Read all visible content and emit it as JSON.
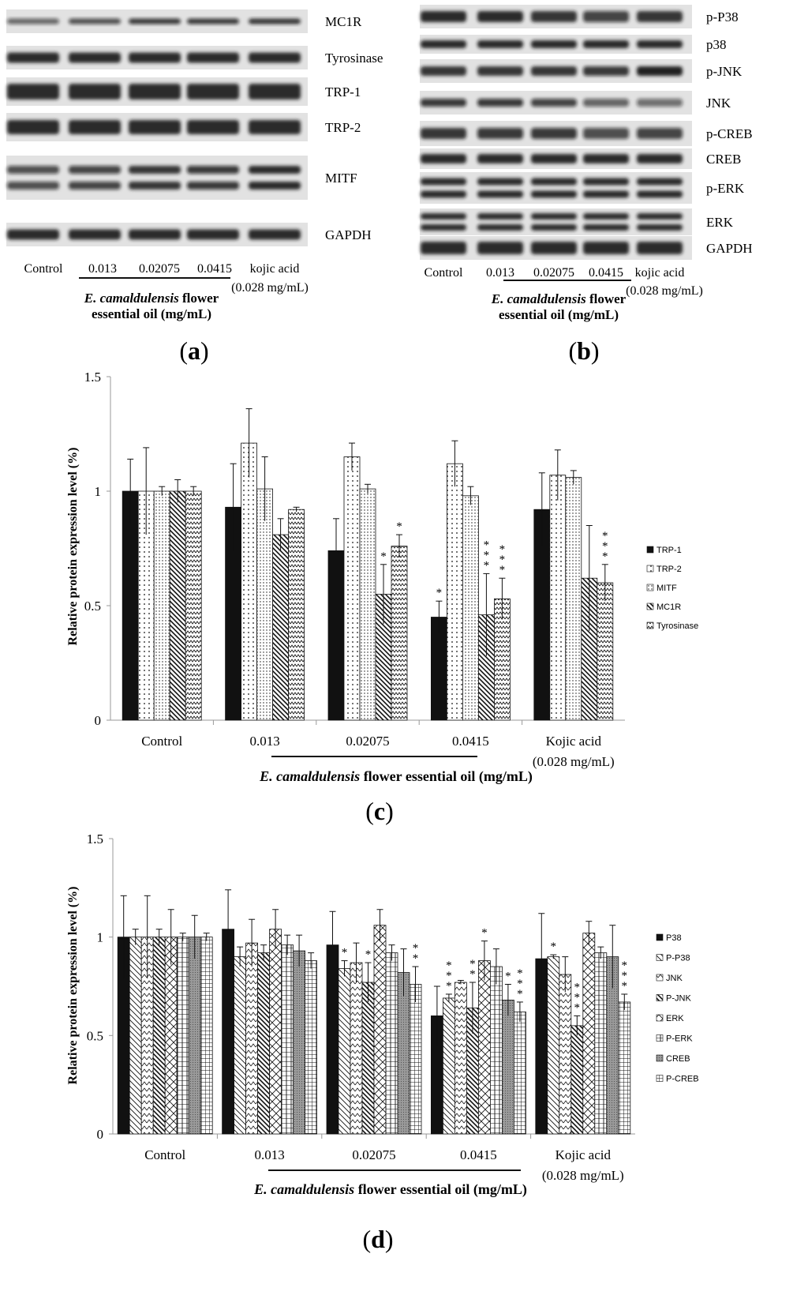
{
  "blot_a": {
    "bands": [
      "MC1R",
      "Tyrosinase",
      "TRP-1",
      "TRP-2",
      "MITF",
      "GAPDH"
    ],
    "x_labels": [
      "Control",
      "0.013",
      "0.02075",
      "0.0415",
      "kojic acid"
    ],
    "x_note": "(0.028 mg/mL)",
    "caption_species": "E. camaldulensis",
    "caption_rest1": " flower",
    "caption_line2": "essential oil (mg/mL)",
    "panel": "a"
  },
  "blot_b": {
    "bands": [
      "p-P38",
      "p38",
      "p-JNK",
      "JNK",
      "p-CREB",
      "CREB",
      "p-ERK",
      "ERK",
      "GAPDH"
    ],
    "x_labels": [
      "Control",
      "0.013",
      "0.02075",
      "0.0415",
      "kojic acid"
    ],
    "x_note": "(0.028 mg/mL)",
    "caption_species": "E. camaldulensis",
    "caption_rest1": " flower",
    "caption_line2": "essential oil (mg/mL)",
    "panel": "b"
  },
  "chart_data": [
    {
      "type": "bar",
      "panel": "c",
      "ylabel": "Relative protein expression level (%)",
      "ylim": [
        0,
        1.5
      ],
      "yticks": [
        "0",
        "0.5",
        "1",
        "1.5"
      ],
      "categories": [
        "Control",
        "0.013",
        "0.02075",
        "0.0415",
        "Kojic acid"
      ],
      "category_note": "(0.028 mg/mL)",
      "xtitle_species": "E. camaldulensis",
      "xtitle_rest": " flower essential oil (mg/mL)",
      "legend_position": "right",
      "series": [
        {
          "name": "TRP-1",
          "values": [
            1.0,
            0.93,
            0.74,
            0.45,
            0.92
          ],
          "errors": [
            0.14,
            0.19,
            0.14,
            0.07,
            0.16
          ],
          "stars": [
            "",
            "",
            "",
            "*",
            ""
          ]
        },
        {
          "name": "TRP-2",
          "values": [
            1.0,
            1.21,
            1.15,
            1.12,
            1.07
          ],
          "errors": [
            0.19,
            0.15,
            0.06,
            0.1,
            0.11
          ],
          "stars": [
            "",
            "",
            "",
            "",
            ""
          ]
        },
        {
          "name": "MITF",
          "values": [
            1.0,
            1.01,
            1.01,
            0.98,
            1.06
          ],
          "errors": [
            0.02,
            0.14,
            0.02,
            0.04,
            0.03
          ],
          "stars": [
            "",
            "",
            "",
            "",
            ""
          ]
        },
        {
          "name": "MC1R",
          "values": [
            1.0,
            0.81,
            0.55,
            0.46,
            0.62
          ],
          "errors": [
            0.05,
            0.07,
            0.13,
            0.18,
            0.23
          ],
          "stars": [
            "",
            "",
            "*",
            "***",
            ""
          ]
        },
        {
          "name": "Tyrosinase",
          "values": [
            1.0,
            0.92,
            0.76,
            0.53,
            0.6
          ],
          "errors": [
            0.02,
            0.01,
            0.05,
            0.09,
            0.08
          ],
          "stars": [
            "",
            "",
            "*",
            "***",
            "***"
          ]
        }
      ]
    },
    {
      "type": "bar",
      "panel": "d",
      "ylabel": "Relative protein expression level (%)",
      "ylim": [
        0,
        1.5
      ],
      "yticks": [
        "0",
        "0.5",
        "1",
        "1.5"
      ],
      "categories": [
        "Control",
        "0.013",
        "0.02075",
        "0.0415",
        "Kojic acid"
      ],
      "category_note": "(0.028 mg/mL)",
      "xtitle_species": "E. camaldulensis",
      "xtitle_rest": " flower essential oil (mg/mL)",
      "legend_position": "right",
      "series": [
        {
          "name": "P38",
          "values": [
            1.0,
            1.04,
            0.96,
            0.6,
            0.89
          ],
          "errors": [
            0.21,
            0.2,
            0.17,
            0.15,
            0.23
          ],
          "stars": [
            "",
            "",
            "",
            "",
            ""
          ]
        },
        {
          "name": "P-P38",
          "values": [
            1.0,
            0.9,
            0.84,
            0.69,
            0.9
          ],
          "errors": [
            0.04,
            0.05,
            0.04,
            0.02,
            0.01
          ],
          "stars": [
            "",
            "",
            "*",
            "***",
            "*"
          ]
        },
        {
          "name": "JNK",
          "values": [
            1.0,
            0.97,
            0.87,
            0.77,
            0.81
          ],
          "errors": [
            0.21,
            0.12,
            0.1,
            0.01,
            0.09
          ],
          "stars": [
            "",
            "",
            "",
            "",
            ""
          ]
        },
        {
          "name": "P-JNK",
          "values": [
            1.0,
            0.92,
            0.77,
            0.64,
            0.55
          ],
          "errors": [
            0.04,
            0.04,
            0.1,
            0.13,
            0.05
          ],
          "stars": [
            "",
            "",
            "*",
            "**",
            "***"
          ]
        },
        {
          "name": "ERK",
          "values": [
            1.0,
            1.04,
            1.06,
            0.88,
            1.02
          ],
          "errors": [
            0.14,
            0.1,
            0.08,
            0.1,
            0.06
          ],
          "stars": [
            "",
            "",
            "",
            "*",
            ""
          ]
        },
        {
          "name": "P-ERK",
          "values": [
            1.0,
            0.96,
            0.92,
            0.85,
            0.92
          ],
          "errors": [
            0.02,
            0.05,
            0.04,
            0.09,
            0.03
          ],
          "stars": [
            "",
            "",
            "",
            "",
            ""
          ]
        },
        {
          "name": "CREB",
          "values": [
            1.0,
            0.93,
            0.82,
            0.68,
            0.9
          ],
          "errors": [
            0.11,
            0.08,
            0.12,
            0.08,
            0.16
          ],
          "stars": [
            "",
            "",
            "",
            "*",
            ""
          ]
        },
        {
          "name": "P-CREB",
          "values": [
            1.0,
            0.88,
            0.76,
            0.62,
            0.67
          ],
          "errors": [
            0.02,
            0.04,
            0.09,
            0.05,
            0.04
          ],
          "stars": [
            "",
            "",
            "**",
            "***",
            "***"
          ]
        }
      ]
    }
  ]
}
